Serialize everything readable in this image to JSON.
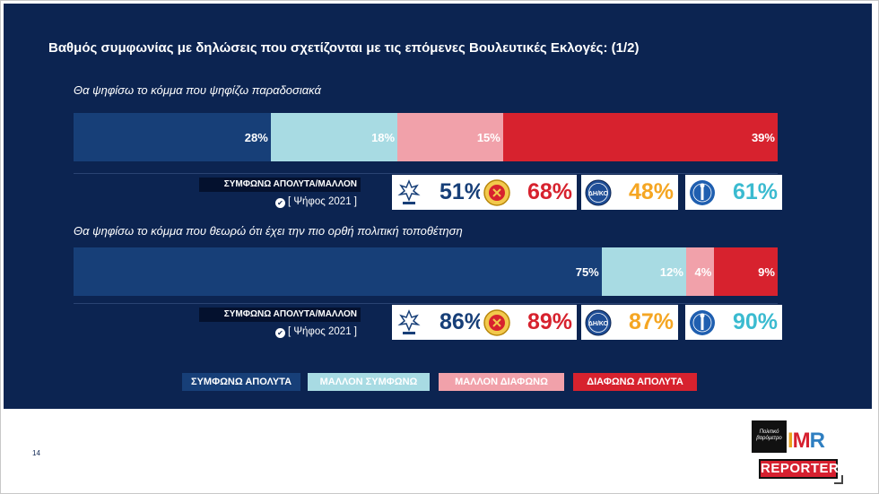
{
  "title": "Βαθμός συμφωνίας με δηλώσεις που σχετίζονται με τις επόμενες Βουλευτικές Εκλογές: (1/2)",
  "colors": {
    "agree_fully": "#173f78",
    "agree_mostly": "#a8dbe3",
    "disagree_mostly": "#f1a1aa",
    "disagree_fully": "#d7222e",
    "panel": "#0c2451"
  },
  "chart_data": {
    "type": "bar",
    "orientation": "horizontal-stacked",
    "categories": [
      "Θα ψηφίσω το κόμμα που ψηφίζω παραδοσιακά",
      "Θα ψηφίσω το κόμμα που θεωρώ ότι έχει την πιο ορθή πολιτική τοποθέτηση"
    ],
    "series": [
      {
        "name": "ΣΥΜΦΩΝΩ ΑΠΟΛΥΤΑ",
        "values": [
          28,
          75
        ],
        "labels": [
          "28%",
          "75%"
        ],
        "color": "#173f78"
      },
      {
        "name": "ΜΑΛΛΟΝ ΣΥΜΦΩΝΩ",
        "values": [
          18,
          12
        ],
        "labels": [
          "18%",
          "12%"
        ],
        "color": "#a8dbe3"
      },
      {
        "name": "ΜΑΛΛΟΝ ΔΙΑΦΩΝΩ",
        "values": [
          15,
          4
        ],
        "labels": [
          "15%",
          "4%"
        ],
        "color": "#f1a1aa"
      },
      {
        "name": "ΔΙΑΦΩΝΩ ΑΠΟΛΥΤΑ",
        "values": [
          39,
          9
        ],
        "labels": [
          "39%",
          "9%"
        ],
        "color": "#d7222e"
      }
    ],
    "legend": "bottom",
    "grid": false
  },
  "agree_block": {
    "label": "ΣΥΜΦΩΝΩ ΑΠΟΛΥΤΑ/ΜΑΛΛΟΝ",
    "vote_label": "[ Ψήφος 2021 ]",
    "rows": [
      [
        {
          "party": "disy",
          "icon": "disy-logo-icon",
          "value": "51%",
          "color": "#173f78"
        },
        {
          "party": "akel",
          "icon": "akel-logo-icon",
          "value": "68%",
          "color": "#d7222e"
        },
        {
          "party": "diko",
          "icon": "diko-logo-icon",
          "value": "48%",
          "color": "#f5a623"
        },
        {
          "party": "elam",
          "icon": "elam-logo-icon",
          "value": "61%",
          "color": "#3bbbd0"
        }
      ],
      [
        {
          "party": "disy",
          "icon": "disy-logo-icon",
          "value": "86%",
          "color": "#173f78"
        },
        {
          "party": "akel",
          "icon": "akel-logo-icon",
          "value": "89%",
          "color": "#d7222e"
        },
        {
          "party": "diko",
          "icon": "diko-logo-icon",
          "value": "87%",
          "color": "#f5a623"
        },
        {
          "party": "elam",
          "icon": "elam-logo-icon",
          "value": "90%",
          "color": "#3bbbd0"
        }
      ]
    ]
  },
  "logo_texts": {
    "diko": "ΔΗ/ΚΟ"
  },
  "footer": {
    "page_number": "14",
    "brand_black_text": "Πολιτικό βαρόμετρο",
    "brand_imr": "IMR",
    "brand_reporter": "REPORTER"
  }
}
